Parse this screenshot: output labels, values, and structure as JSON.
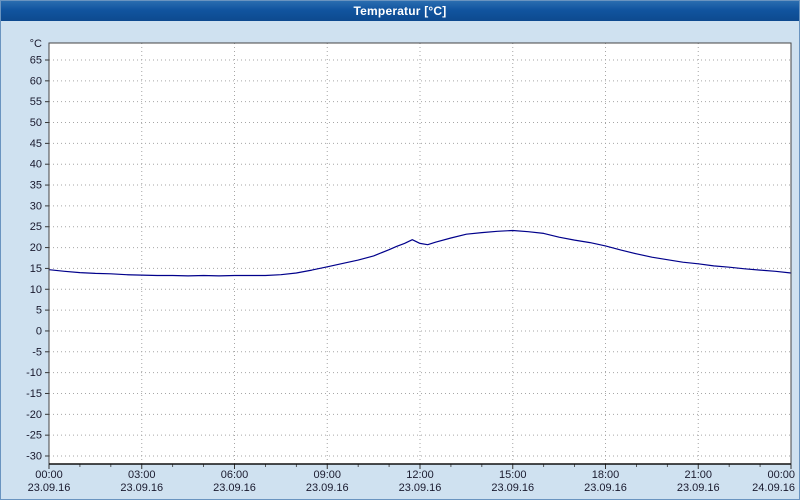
{
  "window": {
    "title": "Temperatur [°C]"
  },
  "chart_data": {
    "type": "line",
    "title": "Temperatur [°C]",
    "ylabel": "°C",
    "xlabel": "",
    "ylim": [
      -30,
      65
    ],
    "xlim_hours": [
      0,
      24
    ],
    "grid": "dotted",
    "legend": "none",
    "colors": {
      "line": "#00008b",
      "plot_bg": "#ffffff",
      "window_bg": "#cfe1f0",
      "titlebar_bg": "#11549f",
      "gridline": "#a6a6a6",
      "axis": "#333333"
    },
    "y_ticks": [
      65,
      60,
      55,
      50,
      45,
      40,
      35,
      30,
      25,
      20,
      15,
      10,
      5,
      0,
      -5,
      -10,
      -15,
      -20,
      -25,
      -30
    ],
    "x_ticks": [
      {
        "hour": 0,
        "time": "00:00",
        "date": "23.09.16"
      },
      {
        "hour": 3,
        "time": "03:00",
        "date": "23.09.16"
      },
      {
        "hour": 6,
        "time": "06:00",
        "date": "23.09.16"
      },
      {
        "hour": 9,
        "time": "09:00",
        "date": "23.09.16"
      },
      {
        "hour": 12,
        "time": "12:00",
        "date": "23.09.16"
      },
      {
        "hour": 15,
        "time": "15:00",
        "date": "23.09.16"
      },
      {
        "hour": 18,
        "time": "18:00",
        "date": "23.09.16"
      },
      {
        "hour": 21,
        "time": "21:00",
        "date": "23.09.16"
      },
      {
        "hour": 24,
        "time": "00:00",
        "date": "24.09.16"
      }
    ],
    "series": [
      {
        "name": "Temperatur",
        "color": "#00008b",
        "x_hours": [
          0,
          0.5,
          1,
          1.5,
          2,
          2.5,
          3,
          3.5,
          4,
          4.5,
          5,
          5.5,
          6,
          6.5,
          7,
          7.5,
          8,
          8.5,
          9,
          9.5,
          10,
          10.5,
          11,
          11.25,
          11.5,
          11.75,
          12,
          12.25,
          12.5,
          13,
          13.5,
          14,
          14.5,
          15,
          15.5,
          16,
          16.5,
          17,
          17.5,
          18,
          18.5,
          19,
          19.5,
          20,
          20.5,
          21,
          21.5,
          22,
          22.5,
          23,
          23.5,
          24
        ],
        "values": [
          14.7,
          14.3,
          14.0,
          13.8,
          13.7,
          13.5,
          13.4,
          13.3,
          13.3,
          13.2,
          13.3,
          13.2,
          13.3,
          13.3,
          13.3,
          13.5,
          13.9,
          14.6,
          15.4,
          16.2,
          17.0,
          18.0,
          19.5,
          20.3,
          21.0,
          21.9,
          21.0,
          20.7,
          21.3,
          22.3,
          23.2,
          23.6,
          23.9,
          24.1,
          23.8,
          23.4,
          22.5,
          21.8,
          21.2,
          20.4,
          19.4,
          18.5,
          17.7,
          17.1,
          16.5,
          16.1,
          15.6,
          15.3,
          14.9,
          14.6,
          14.3,
          13.9
        ]
      }
    ]
  }
}
